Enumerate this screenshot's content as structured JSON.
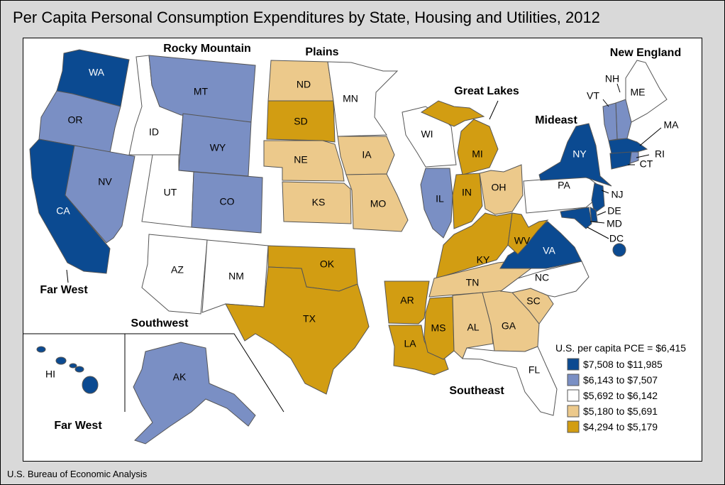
{
  "title": "Per Capita Personal Consumption Expenditures by State, Housing and Utilities, 2012",
  "source": "U.S. Bureau of Economic Analysis",
  "legend": {
    "title": "U.S. per capita PCE = $6,415",
    "classes": [
      {
        "label": "$7,508 to $11,985",
        "color": "#0b4a91"
      },
      {
        "label": "$6,143 to $7,507",
        "color": "#7a8fc4"
      },
      {
        "label": "$5,692 to $6,142",
        "color": "#ffffff"
      },
      {
        "label": "$5,180 to $5,691",
        "color": "#ecc98b"
      },
      {
        "label": "$4,294 to $5,179",
        "color": "#d29d12"
      }
    ]
  },
  "regions": {
    "rocky_mountain": "Rocky Mountain",
    "plains": "Plains",
    "great_lakes": "Great Lakes",
    "new_england": "New England",
    "mideast": "Mideast",
    "far_west": "Far West",
    "southwest": "Southwest",
    "southeast": "Southeast",
    "far_west_inset": "Far West"
  },
  "states": {
    "WA": {
      "label": "WA",
      "class": 0
    },
    "OR": {
      "label": "OR",
      "class": 1
    },
    "CA": {
      "label": "CA",
      "class": 0
    },
    "NV": {
      "label": "NV",
      "class": 1
    },
    "ID": {
      "label": "ID",
      "class": 2
    },
    "MT": {
      "label": "MT",
      "class": 1
    },
    "WY": {
      "label": "WY",
      "class": 1
    },
    "UT": {
      "label": "UT",
      "class": 2
    },
    "CO": {
      "label": "CO",
      "class": 1
    },
    "AZ": {
      "label": "AZ",
      "class": 2
    },
    "NM": {
      "label": "NM",
      "class": 2
    },
    "ND": {
      "label": "ND",
      "class": 3
    },
    "SD": {
      "label": "SD",
      "class": 4
    },
    "NE": {
      "label": "NE",
      "class": 3
    },
    "KS": {
      "label": "KS",
      "class": 3
    },
    "MN": {
      "label": "MN",
      "class": 2
    },
    "IA": {
      "label": "IA",
      "class": 3
    },
    "MO": {
      "label": "MO",
      "class": 3
    },
    "OK": {
      "label": "OK",
      "class": 4
    },
    "TX": {
      "label": "TX",
      "class": 4
    },
    "AR": {
      "label": "AR",
      "class": 4
    },
    "LA": {
      "label": "LA",
      "class": 4
    },
    "WI": {
      "label": "WI",
      "class": 2
    },
    "IL": {
      "label": "IL",
      "class": 1
    },
    "MI": {
      "label": "MI",
      "class": 4
    },
    "IN": {
      "label": "IN",
      "class": 4
    },
    "OH": {
      "label": "OH",
      "class": 3
    },
    "KY": {
      "label": "KY",
      "class": 4
    },
    "TN": {
      "label": "TN",
      "class": 3
    },
    "MS": {
      "label": "MS",
      "class": 4
    },
    "AL": {
      "label": "AL",
      "class": 3
    },
    "GA": {
      "label": "GA",
      "class": 3
    },
    "FL": {
      "label": "FL",
      "class": 2
    },
    "SC": {
      "label": "SC",
      "class": 3
    },
    "NC": {
      "label": "NC",
      "class": 2
    },
    "VA": {
      "label": "VA",
      "class": 0
    },
    "WV": {
      "label": "WV",
      "class": 4
    },
    "PA": {
      "label": "PA",
      "class": 2
    },
    "NY": {
      "label": "NY",
      "class": 0
    },
    "NJ": {
      "label": "NJ",
      "class": 0
    },
    "DE": {
      "label": "DE",
      "class": 0
    },
    "MD": {
      "label": "MD",
      "class": 0
    },
    "DC": {
      "label": "DC",
      "class": 0
    },
    "ME": {
      "label": "ME",
      "class": 2
    },
    "NH": {
      "label": "NH",
      "class": 1
    },
    "VT": {
      "label": "VT",
      "class": 1
    },
    "MA": {
      "label": "MA",
      "class": 0
    },
    "CT": {
      "label": "CT",
      "class": 0
    },
    "RI": {
      "label": "RI",
      "class": 1
    },
    "HI": {
      "label": "HI",
      "class": 0
    },
    "AK": {
      "label": "AK",
      "class": 1
    }
  }
}
